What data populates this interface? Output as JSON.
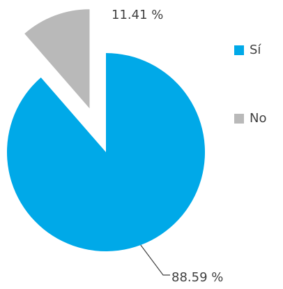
{
  "chart_data": {
    "type": "pie",
    "categories": [
      "Sí",
      "No"
    ],
    "values": [
      88.59,
      11.41
    ],
    "value_labels": [
      "88.59 %",
      "11.41 %"
    ],
    "colors": [
      "#00a9e8",
      "#b9b9b9"
    ],
    "exploded": [
      false,
      true
    ],
    "legend": "right"
  }
}
